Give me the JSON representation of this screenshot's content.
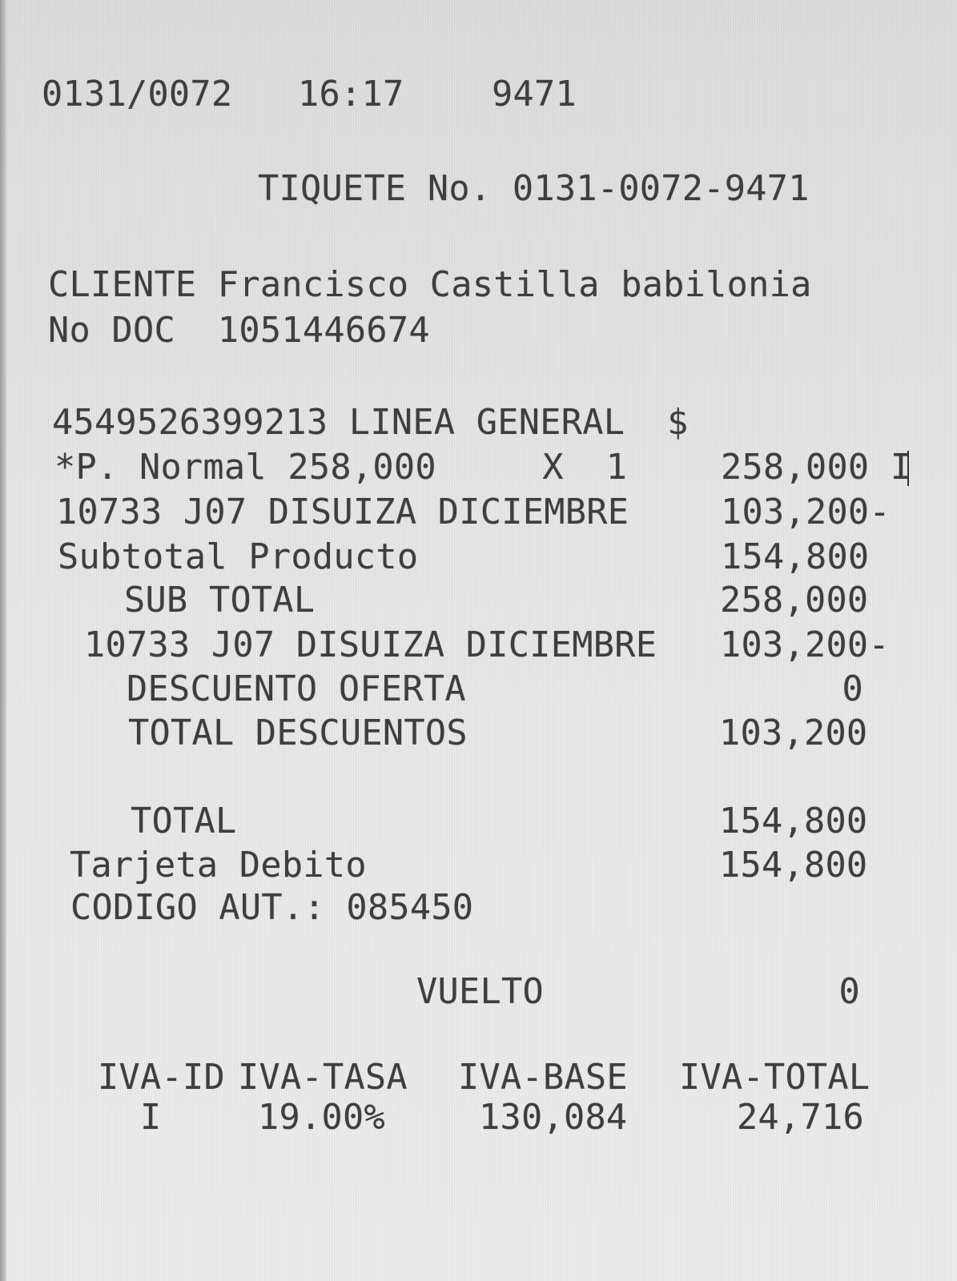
{
  "header": {
    "terminal": "0131/0072",
    "time": "16:17",
    "number": "9471"
  },
  "ticket": "TIQUETE No. 0131-0072-9471",
  "customer": {
    "name_line": "CLIENTE Francisco Castilla babilonia",
    "doc_line": "No DOC  1051446674"
  },
  "item": {
    "code_line": "4549526399213 LINEA GENERAL  $",
    "price_line": "*P. Normal 258,000     X  1",
    "price_amount": "258,000 I",
    "discount_line": "10733 J07 DISUIZA DICIEMBRE",
    "discount_amount": "103,200-",
    "subtotal_label": "Subtotal Producto",
    "subtotal_amount": "154,800"
  },
  "summary": {
    "sub_total_label": "SUB TOTAL",
    "sub_total": "258,000",
    "discount_label": "10733 J07 DISUIZA DICIEMBRE",
    "discount": "103,200-",
    "offer_label": "DESCUENTO OFERTA",
    "offer": "0",
    "total_discounts_label": "TOTAL DESCUENTOS",
    "total_discounts": "103,200",
    "total_label": "TOTAL",
    "total": "154,800",
    "payment_label": "Tarjeta Debito",
    "payment": "154,800",
    "auth_line": "CODIGO AUT.: 085450",
    "change_label": "VUELTO",
    "change": "0"
  },
  "tax": {
    "headers": [
      "IVA-ID",
      "IVA-TASA",
      "IVA-BASE",
      "IVA-TOTAL"
    ],
    "row": [
      "I",
      "19.00%",
      "130,084",
      "24,716"
    ]
  }
}
